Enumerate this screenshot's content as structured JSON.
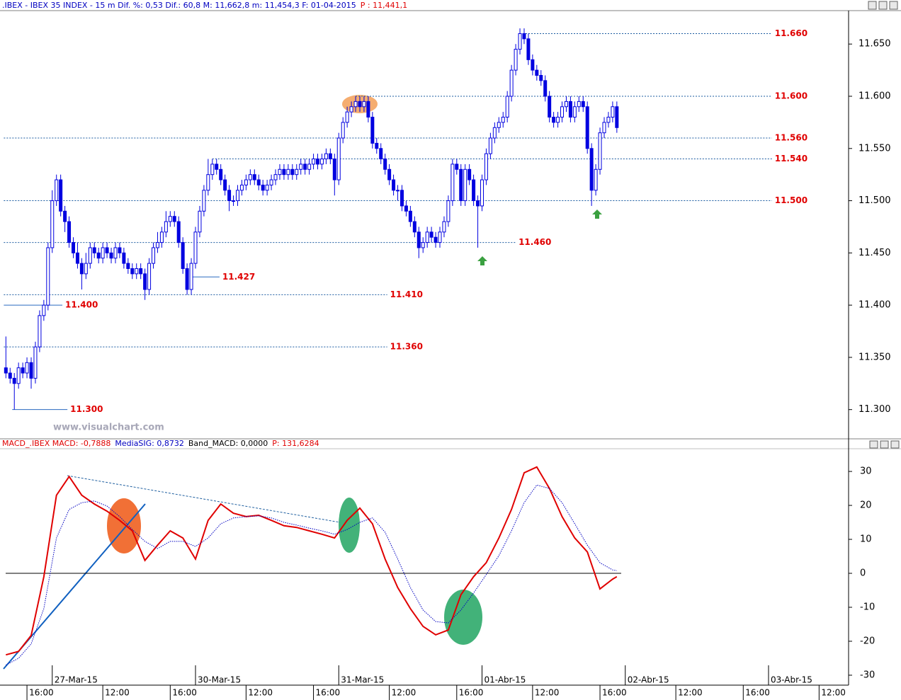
{
  "chart_data": [
    {
      "type": "candlestick",
      "title": [
        ".IBEX - IBEX 35 INDEX -  15 m Dif. %: 0,53 Dif.: 60,8 M: 11,662,8 m: 11,454,3 F: 01-04-2015",
        "P : 11,441,1"
      ],
      "title_colors": [
        "#0000c0",
        "#e00000"
      ],
      "watermark": "www.visualchart.com",
      "color": "#0000e0",
      "xlim": [
        -1.4,
        200
      ],
      "ylim": [
        11.272,
        11.682
      ],
      "yticks": [
        {
          "value": 11.65,
          "label": "11.650"
        },
        {
          "value": 11.6,
          "label": "11.600"
        },
        {
          "value": 11.55,
          "label": "11.550"
        },
        {
          "value": 11.5,
          "label": "11.500"
        },
        {
          "value": 11.45,
          "label": "11.450"
        },
        {
          "value": 11.4,
          "label": "11.400"
        },
        {
          "value": 11.35,
          "label": "11.350"
        },
        {
          "value": 11.3,
          "label": "11.300"
        }
      ],
      "open": [
        11.34,
        11.335,
        11.33,
        11.325,
        11.34,
        11.335,
        11.345,
        11.33,
        11.36,
        11.39,
        11.4,
        11.455,
        11.5,
        11.52,
        11.49,
        11.48,
        11.46,
        11.45,
        11.44,
        11.43,
        11.44,
        11.455,
        11.45,
        11.445,
        11.455,
        11.45,
        11.445,
        11.455,
        11.45,
        11.44,
        11.435,
        11.43,
        11.435,
        11.43,
        11.415,
        11.44,
        11.455,
        11.46,
        11.47,
        11.48,
        11.485,
        11.48,
        11.46,
        11.435,
        11.415,
        11.44,
        11.47,
        11.49,
        11.51,
        11.525,
        11.535,
        11.53,
        11.52,
        11.51,
        11.5,
        11.5,
        11.51,
        11.515,
        11.52,
        11.525,
        11.52,
        11.515,
        11.51,
        11.515,
        11.52,
        11.525,
        11.53,
        11.525,
        11.53,
        11.525,
        11.53,
        11.535,
        11.53,
        11.535,
        11.54,
        11.535,
        11.54,
        11.545,
        11.54,
        11.52,
        11.56,
        11.575,
        11.585,
        11.59,
        11.595,
        11.59,
        11.595,
        11.58,
        11.555,
        11.55,
        11.54,
        11.53,
        11.52,
        11.51,
        11.51,
        11.495,
        11.49,
        11.48,
        11.47,
        11.455,
        11.46,
        11.47,
        11.465,
        11.46,
        11.47,
        11.48,
        11.5,
        11.535,
        11.53,
        11.5,
        11.53,
        11.52,
        11.5,
        11.495,
        11.52,
        11.545,
        11.56,
        11.57,
        11.575,
        11.58,
        11.6,
        11.625,
        11.645,
        11.66,
        11.655,
        11.635,
        11.625,
        11.62,
        11.615,
        11.6,
        11.58,
        11.575,
        11.58,
        11.59,
        11.595,
        11.58,
        11.59,
        11.595,
        11.59,
        11.55,
        11.51,
        11.53,
        11.565,
        11.575,
        11.58,
        11.59
      ],
      "high": [
        11.37,
        11.34,
        11.335,
        11.345,
        11.345,
        11.35,
        11.35,
        11.365,
        11.395,
        11.405,
        11.46,
        11.51,
        11.525,
        11.525,
        11.495,
        11.485,
        11.465,
        11.46,
        11.445,
        11.45,
        11.46,
        11.46,
        11.455,
        11.46,
        11.46,
        11.455,
        11.46,
        11.46,
        11.455,
        11.445,
        11.44,
        11.44,
        11.44,
        11.435,
        11.445,
        11.46,
        11.47,
        11.475,
        11.49,
        11.49,
        11.49,
        11.485,
        11.465,
        11.44,
        11.445,
        11.475,
        11.495,
        11.515,
        11.54,
        11.54,
        11.54,
        11.535,
        11.525,
        11.515,
        11.505,
        11.515,
        11.52,
        11.525,
        11.53,
        11.53,
        11.525,
        11.52,
        11.52,
        11.525,
        11.53,
        11.535,
        11.535,
        11.535,
        11.535,
        11.535,
        11.54,
        11.54,
        11.54,
        11.545,
        11.545,
        11.545,
        11.55,
        11.55,
        11.545,
        11.565,
        11.58,
        11.59,
        11.595,
        11.6,
        11.6,
        11.6,
        11.6,
        11.585,
        11.56,
        11.555,
        11.545,
        11.535,
        11.525,
        11.515,
        11.515,
        11.5,
        11.495,
        11.485,
        11.475,
        11.465,
        11.475,
        11.475,
        11.47,
        11.475,
        11.485,
        11.505,
        11.54,
        11.54,
        11.535,
        11.535,
        11.535,
        11.525,
        11.505,
        11.525,
        11.55,
        11.565,
        11.575,
        11.58,
        11.585,
        11.605,
        11.63,
        11.65,
        11.665,
        11.665,
        11.66,
        11.64,
        11.63,
        11.625,
        11.62,
        11.605,
        11.585,
        11.585,
        11.595,
        11.6,
        11.6,
        11.595,
        11.6,
        11.6,
        11.595,
        11.555,
        11.535,
        11.57,
        11.58,
        11.585,
        11.595,
        11.595
      ],
      "low": [
        11.33,
        11.325,
        11.3,
        11.32,
        11.33,
        11.33,
        11.32,
        11.325,
        11.355,
        11.385,
        11.395,
        11.45,
        11.495,
        11.485,
        11.47,
        11.455,
        11.445,
        11.435,
        11.415,
        11.425,
        11.435,
        11.445,
        11.44,
        11.44,
        11.445,
        11.44,
        11.44,
        11.445,
        11.435,
        11.43,
        11.425,
        11.425,
        11.425,
        11.405,
        11.41,
        11.435,
        11.45,
        11.455,
        11.465,
        11.475,
        11.475,
        11.455,
        11.43,
        11.41,
        11.41,
        11.435,
        11.465,
        11.485,
        11.505,
        11.52,
        11.525,
        11.515,
        11.505,
        11.49,
        11.495,
        11.495,
        11.505,
        11.51,
        11.515,
        11.515,
        11.51,
        11.505,
        11.505,
        11.51,
        11.515,
        11.52,
        11.52,
        11.52,
        11.52,
        11.52,
        11.525,
        11.525,
        11.525,
        11.53,
        11.53,
        11.53,
        11.535,
        11.535,
        11.505,
        11.515,
        11.555,
        11.57,
        11.58,
        11.585,
        11.585,
        11.585,
        11.575,
        11.55,
        11.545,
        11.535,
        11.525,
        11.515,
        11.505,
        11.5,
        11.49,
        11.485,
        11.475,
        11.465,
        11.445,
        11.45,
        11.455,
        11.46,
        11.455,
        11.455,
        11.465,
        11.475,
        11.495,
        11.525,
        11.495,
        11.495,
        11.515,
        11.495,
        11.455,
        11.49,
        11.515,
        11.54,
        11.555,
        11.565,
        11.57,
        11.575,
        11.595,
        11.62,
        11.64,
        11.65,
        11.63,
        11.62,
        11.615,
        11.61,
        11.595,
        11.575,
        11.57,
        11.57,
        11.575,
        11.585,
        11.575,
        11.575,
        11.585,
        11.585,
        11.545,
        11.495,
        11.505,
        11.525,
        11.56,
        11.57,
        11.575,
        11.565
      ],
      "close": [
        11.335,
        11.33,
        11.325,
        11.34,
        11.335,
        11.345,
        11.33,
        11.36,
        11.39,
        11.4,
        11.455,
        11.5,
        11.52,
        11.49,
        11.48,
        11.46,
        11.45,
        11.44,
        11.43,
        11.44,
        11.455,
        11.45,
        11.445,
        11.455,
        11.45,
        11.445,
        11.455,
        11.45,
        11.44,
        11.435,
        11.43,
        11.435,
        11.43,
        11.415,
        11.44,
        11.455,
        11.46,
        11.47,
        11.48,
        11.485,
        11.48,
        11.46,
        11.435,
        11.415,
        11.44,
        11.47,
        11.49,
        11.51,
        11.525,
        11.535,
        11.53,
        11.52,
        11.51,
        11.5,
        11.5,
        11.51,
        11.515,
        11.52,
        11.525,
        11.52,
        11.515,
        11.51,
        11.515,
        11.52,
        11.525,
        11.53,
        11.525,
        11.53,
        11.525,
        11.53,
        11.535,
        11.53,
        11.535,
        11.54,
        11.535,
        11.54,
        11.545,
        11.54,
        11.52,
        11.56,
        11.575,
        11.585,
        11.59,
        11.595,
        11.59,
        11.595,
        11.58,
        11.555,
        11.55,
        11.54,
        11.53,
        11.52,
        11.51,
        11.51,
        11.495,
        11.49,
        11.48,
        11.47,
        11.455,
        11.46,
        11.47,
        11.465,
        11.46,
        11.47,
        11.48,
        11.5,
        11.535,
        11.53,
        11.5,
        11.53,
        11.52,
        11.5,
        11.495,
        11.52,
        11.545,
        11.56,
        11.57,
        11.575,
        11.58,
        11.6,
        11.625,
        11.645,
        11.66,
        11.655,
        11.635,
        11.625,
        11.62,
        11.615,
        11.6,
        11.58,
        11.575,
        11.58,
        11.59,
        11.595,
        11.58,
        11.59,
        11.595,
        11.59,
        11.55,
        11.51,
        11.53,
        11.565,
        11.575,
        11.58,
        11.59,
        11.57
      ],
      "level_color": "#e00000",
      "levels": [
        {
          "value": 11.66,
          "label": "11.660",
          "from": 122,
          "to": 181.8,
          "style": "dotted"
        },
        {
          "value": 11.6,
          "label": "11.600",
          "from": 83,
          "to": 181.8,
          "style": "dotted"
        },
        {
          "value": 11.56,
          "label": "11.560",
          "from": -0.5,
          "to": 181.8,
          "style": "dotted"
        },
        {
          "value": 11.54,
          "label": "11.540",
          "from": 49,
          "to": 181.8,
          "style": "dotted"
        },
        {
          "value": 11.5,
          "label": "11.500",
          "from": -0.5,
          "to": 181.8,
          "style": "dotted"
        },
        {
          "value": 11.46,
          "label": "11.460",
          "from": -0.5,
          "to": 121,
          "style": "dotted"
        },
        {
          "value": 11.41,
          "label": "11.410",
          "from": -0.5,
          "to": 90.5,
          "style": "dotted"
        },
        {
          "value": 11.36,
          "label": "11.360",
          "from": -0.5,
          "to": 90.5,
          "style": "dotted"
        },
        {
          "value": 11.427,
          "label": "11.427",
          "from": 43.6,
          "to": 50.7,
          "style": "solid"
        },
        {
          "value": 11.4,
          "label": "11.400",
          "from": -0.5,
          "to": 13.4,
          "style": "solid"
        },
        {
          "value": 11.3,
          "label": "11.300",
          "from": 1.5,
          "to": 14.6,
          "style": "solid"
        }
      ]
    },
    {
      "type": "line",
      "title": [
        "MACD_.IBEX MACD: -0,7888",
        "MediaSIG: 0,8732",
        "Band_MACD: 0,0000",
        "P: 131,6284"
      ],
      "title_colors": [
        "#e00000",
        "#0000c0",
        "#000000",
        "#e00000"
      ],
      "xlim": [
        -1.4,
        200
      ],
      "ylim": [
        -32.3,
        37.1
      ],
      "yticks": [
        30,
        20,
        10,
        0,
        -10,
        -20,
        -30
      ],
      "zero_line": true,
      "xticks": [
        {
          "value": 5,
          "label": "16:00"
        },
        {
          "value": 11,
          "label": "27-Mar-15"
        },
        {
          "value": 23,
          "label": "12:00"
        },
        {
          "value": 39,
          "label": "16:00"
        },
        {
          "value": 45,
          "label": "30-Mar-15"
        },
        {
          "value": 57,
          "label": "12:00"
        },
        {
          "value": 73,
          "label": "16:00"
        },
        {
          "value": 79,
          "label": "31-Mar-15"
        },
        {
          "value": 91,
          "label": "12:00"
        },
        {
          "value": 107,
          "label": "16:00"
        },
        {
          "value": 113,
          "label": "01-Abr-15"
        },
        {
          "value": 125,
          "label": "12:00"
        },
        {
          "value": 141,
          "label": "16:00"
        },
        {
          "value": 147,
          "label": "02-Abr-15"
        },
        {
          "value": 159,
          "label": "12:00"
        },
        {
          "value": 175,
          "label": "16:00"
        },
        {
          "value": 181,
          "label": "03-Abr-15"
        },
        {
          "value": 193,
          "label": "12:00"
        }
      ],
      "x": [
        0,
        3,
        6,
        9,
        12,
        15,
        18,
        21,
        24,
        27,
        30,
        33,
        36,
        39,
        42,
        45,
        48,
        51,
        54,
        57,
        60,
        63,
        66,
        69,
        72,
        75,
        78,
        81,
        84,
        87,
        90,
        93,
        96,
        99,
        102,
        105,
        108,
        111,
        114,
        117,
        120,
        123,
        126,
        129,
        132,
        135,
        138,
        141,
        144,
        145
      ],
      "series": [
        {
          "color": "#e00000",
          "style": "solid",
          "values": [
            -24,
            -23,
            -18.3,
            -1,
            23,
            28.5,
            23,
            20.4,
            18.3,
            15.6,
            12.5,
            3.8,
            8.3,
            12.5,
            10.4,
            4.2,
            15.6,
            20.4,
            17.7,
            16.7,
            17.1,
            15.6,
            14,
            13.5,
            12.5,
            11.5,
            10.4,
            15.6,
            19.2,
            14.6,
            4.2,
            -4.2,
            -10.4,
            -15.6,
            -18.1,
            -16.7,
            -6.3,
            -1,
            3.1,
            10.4,
            18.8,
            29.6,
            31.3,
            25,
            16.7,
            10.4,
            6.3,
            -4.6,
            -1.7,
            -1
          ]
        },
        {
          "color": "#0000c0",
          "style": "dotted",
          "values": [
            -27,
            -25,
            -20.8,
            -10.4,
            10.4,
            18.8,
            20.8,
            21.3,
            19.8,
            16.7,
            12.9,
            9.4,
            7.3,
            9.4,
            9.4,
            7.9,
            10.4,
            14.6,
            16.3,
            16.7,
            16.9,
            16.3,
            15,
            14.2,
            13.3,
            12.5,
            11.5,
            12.9,
            15,
            16.3,
            12.1,
            4.2,
            -4.2,
            -10.8,
            -14.2,
            -14.6,
            -10.8,
            -5.8,
            -0.4,
            5.2,
            12.5,
            20.8,
            26,
            25,
            20.8,
            14.6,
            8.3,
            3.1,
            1,
            0.8
          ]
        }
      ]
    }
  ]
}
